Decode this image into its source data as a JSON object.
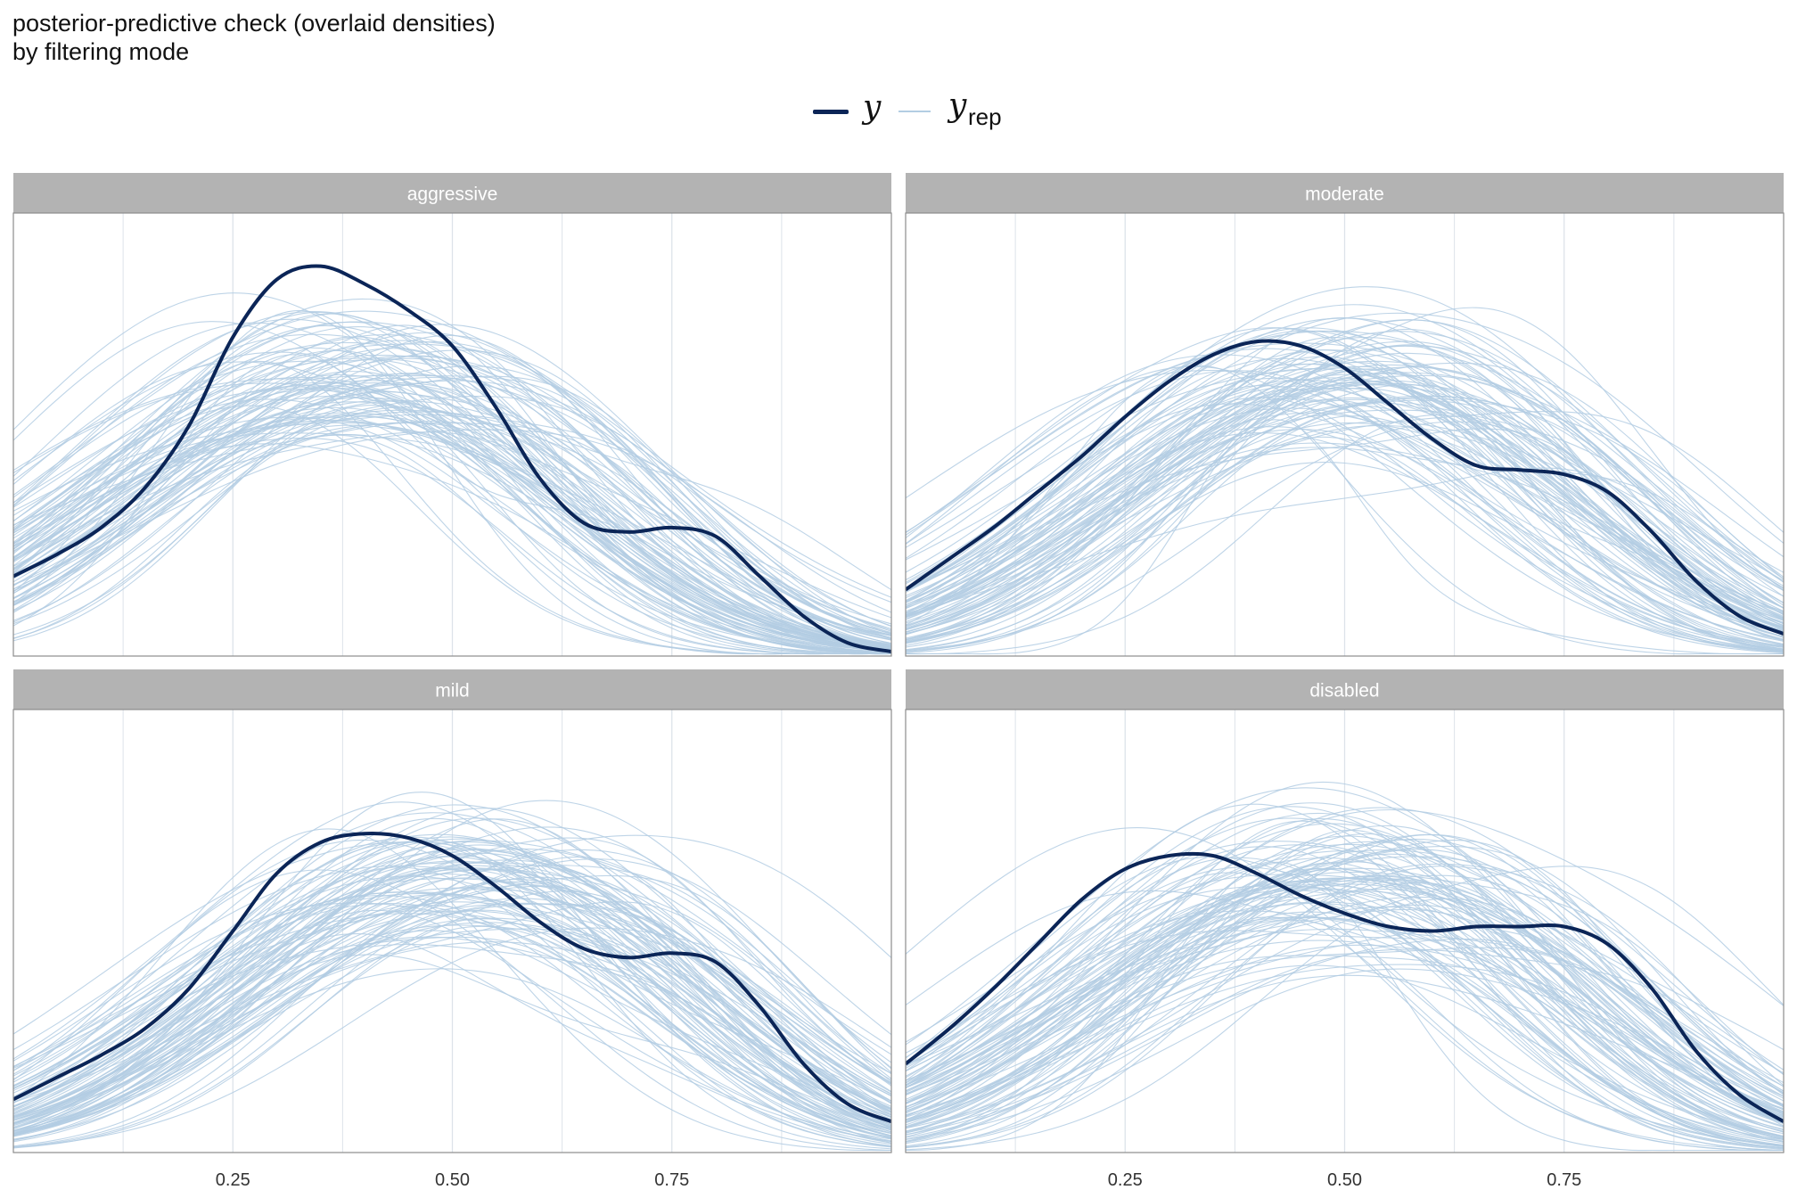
{
  "title_line1": "posterior-predictive check (overlaid densities)",
  "title_line2": "by filtering mode",
  "legend": {
    "y_label": "y",
    "yrep_label": "y",
    "yrep_sub": "rep",
    "y_color": "#0b2557",
    "yrep_color": "#b3cde3"
  },
  "chart_data": [
    {
      "type": "line",
      "facet": "aggressive",
      "x_ticks": [
        "0.25",
        "0.50",
        "0.75"
      ],
      "xlim": [
        0.0,
        1.0
      ],
      "grid": true,
      "series": [
        {
          "name": "y",
          "x": [
            0.0,
            0.05,
            0.1,
            0.15,
            0.2,
            0.25,
            0.3,
            0.35,
            0.4,
            0.45,
            0.5,
            0.55,
            0.6,
            0.65,
            0.7,
            0.75,
            0.8,
            0.85,
            0.9,
            0.95,
            1.0
          ],
          "y": [
            0.18,
            0.23,
            0.29,
            0.38,
            0.52,
            0.72,
            0.85,
            0.88,
            0.84,
            0.78,
            0.7,
            0.56,
            0.4,
            0.3,
            0.28,
            0.29,
            0.27,
            0.18,
            0.09,
            0.03,
            0.01
          ]
        }
      ],
      "yrep_count": 100
    },
    {
      "type": "line",
      "facet": "moderate",
      "x_ticks": [
        "0.25",
        "0.50",
        "0.75"
      ],
      "xlim": [
        0.0,
        1.0
      ],
      "grid": true,
      "series": [
        {
          "name": "y",
          "x": [
            0.0,
            0.05,
            0.1,
            0.15,
            0.2,
            0.25,
            0.3,
            0.35,
            0.4,
            0.45,
            0.5,
            0.55,
            0.6,
            0.65,
            0.7,
            0.75,
            0.8,
            0.85,
            0.9,
            0.95,
            1.0
          ],
          "y": [
            0.15,
            0.22,
            0.29,
            0.37,
            0.45,
            0.54,
            0.62,
            0.68,
            0.71,
            0.7,
            0.65,
            0.57,
            0.49,
            0.43,
            0.42,
            0.41,
            0.37,
            0.28,
            0.17,
            0.09,
            0.05
          ]
        }
      ],
      "yrep_count": 100
    },
    {
      "type": "line",
      "facet": "mild",
      "x_ticks": [
        "0.25",
        "0.50",
        "0.75"
      ],
      "xlim": [
        0.0,
        1.0
      ],
      "grid": true,
      "series": [
        {
          "name": "y",
          "x": [
            0.0,
            0.05,
            0.1,
            0.15,
            0.2,
            0.25,
            0.3,
            0.35,
            0.4,
            0.45,
            0.5,
            0.55,
            0.6,
            0.65,
            0.7,
            0.75,
            0.8,
            0.85,
            0.9,
            0.95,
            1.0
          ],
          "y": [
            0.12,
            0.17,
            0.22,
            0.28,
            0.37,
            0.5,
            0.63,
            0.7,
            0.72,
            0.71,
            0.67,
            0.6,
            0.52,
            0.46,
            0.44,
            0.45,
            0.43,
            0.33,
            0.2,
            0.11,
            0.07
          ]
        }
      ],
      "yrep_count": 100
    },
    {
      "type": "line",
      "facet": "disabled",
      "x_ticks": [
        "0.25",
        "0.50",
        "0.75"
      ],
      "xlim": [
        0.0,
        1.0
      ],
      "grid": true,
      "series": [
        {
          "name": "y",
          "x": [
            0.0,
            0.05,
            0.1,
            0.15,
            0.2,
            0.25,
            0.3,
            0.35,
            0.4,
            0.45,
            0.5,
            0.55,
            0.6,
            0.65,
            0.7,
            0.75,
            0.8,
            0.85,
            0.9,
            0.95,
            1.0
          ],
          "y": [
            0.2,
            0.28,
            0.37,
            0.47,
            0.57,
            0.64,
            0.67,
            0.67,
            0.63,
            0.58,
            0.54,
            0.51,
            0.5,
            0.51,
            0.51,
            0.51,
            0.47,
            0.37,
            0.23,
            0.13,
            0.07
          ]
        }
      ],
      "yrep_count": 100
    }
  ]
}
